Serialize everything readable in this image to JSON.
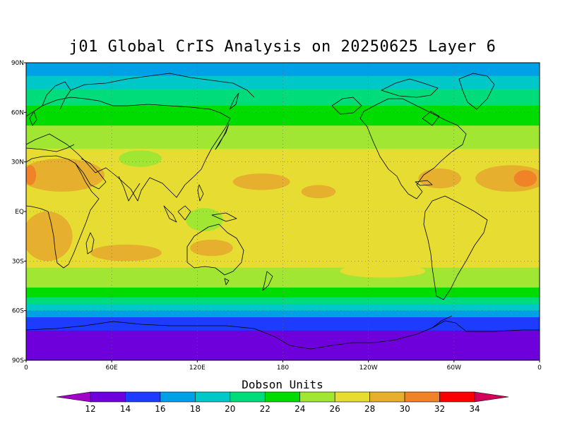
{
  "title": "j01 Global CrIS Analysis on 20250625 Layer 6",
  "lat_labels": [
    "90N",
    "60N",
    "30N",
    "EQ",
    "30S",
    "60S",
    "90S"
  ],
  "lon_labels": [
    "0",
    "60E",
    "120E",
    "180",
    "120W",
    "60W",
    "0"
  ],
  "colorbar": {
    "title": "Dobson Units",
    "labels": [
      "12",
      "14",
      "16",
      "18",
      "20",
      "22",
      "24",
      "26",
      "28",
      "30",
      "32",
      "34"
    ],
    "colors": [
      "#a000c8",
      "#6e00dc",
      "#1e3cff",
      "#00a0e6",
      "#00c8c8",
      "#00dc7a",
      "#00dc00",
      "#a0e632",
      "#e6dc32",
      "#e6af2d",
      "#f08228",
      "#fa0000",
      "#d2005a"
    ]
  },
  "map": {
    "projection": "cylindrical equidistant",
    "lat_range": [
      -90,
      90
    ],
    "lon_range": [
      0,
      360
    ],
    "grid": true,
    "zonal_bands": [
      {
        "lat_from": 90,
        "lat_to": 82,
        "level": "16"
      },
      {
        "lat_from": 82,
        "lat_to": 74,
        "level": "18"
      },
      {
        "lat_from": 74,
        "lat_to": 64,
        "level": "20"
      },
      {
        "lat_from": 64,
        "lat_to": 52,
        "level": "22"
      },
      {
        "lat_from": 52,
        "lat_to": 38,
        "level": "24"
      },
      {
        "lat_from": 38,
        "lat_to": -34,
        "level": "26"
      },
      {
        "lat_from": -34,
        "lat_to": -46,
        "level": "24"
      },
      {
        "lat_from": -46,
        "lat_to": -52,
        "level": "22"
      },
      {
        "lat_from": -52,
        "lat_to": -56,
        "level": "20"
      },
      {
        "lat_from": -56,
        "lat_to": -60,
        "level": "18"
      },
      {
        "lat_from": -60,
        "lat_to": -64,
        "level": "16"
      },
      {
        "lat_from": -64,
        "lat_to": -72,
        "level": "14"
      },
      {
        "lat_from": -72,
        "lat_to": -90,
        "level": "12"
      }
    ],
    "patches": [
      {
        "lon": 25,
        "lat": 22,
        "w": 60,
        "h": 20,
        "level": "28"
      },
      {
        "lon": 3,
        "lat": 22,
        "w": 8,
        "h": 12,
        "level": "30"
      },
      {
        "lon": 340,
        "lat": 20,
        "w": 50,
        "h": 16,
        "level": "28"
      },
      {
        "lon": 350,
        "lat": 20,
        "w": 16,
        "h": 10,
        "level": "30"
      },
      {
        "lon": 290,
        "lat": 20,
        "w": 30,
        "h": 12,
        "level": "28"
      },
      {
        "lon": 15,
        "lat": -15,
        "w": 35,
        "h": 30,
        "level": "28"
      },
      {
        "lon": 130,
        "lat": -22,
        "w": 30,
        "h": 10,
        "level": "28"
      },
      {
        "lon": 165,
        "lat": 18,
        "w": 40,
        "h": 10,
        "level": "28"
      },
      {
        "lon": 205,
        "lat": 12,
        "w": 24,
        "h": 8,
        "level": "28"
      },
      {
        "lon": 70,
        "lat": -25,
        "w": 50,
        "h": 10,
        "level": "28"
      },
      {
        "lon": 125,
        "lat": -5,
        "w": 26,
        "h": 14,
        "level": "24"
      },
      {
        "lon": 80,
        "lat": 32,
        "w": 30,
        "h": 10,
        "level": "24"
      },
      {
        "lon": 250,
        "lat": -36,
        "w": 60,
        "h": 8,
        "level": "26"
      }
    ]
  }
}
